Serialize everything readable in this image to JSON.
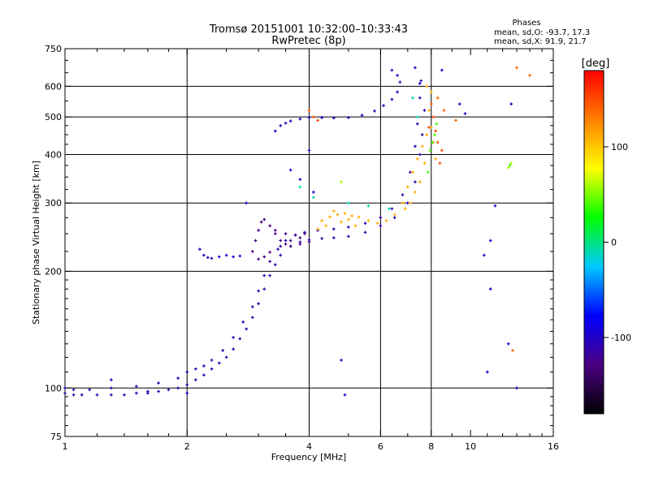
{
  "chart_data": {
    "type": "scatter",
    "title": "Tromsø 20151001 10:32:00–10:33:43",
    "subtitle": "RwPretec (8p)",
    "stats": {
      "heading": "Phases",
      "line_o": "mean, sd,O: -93.7, 17.3",
      "line_x": "mean, sd,X:  91.9, 21.7"
    },
    "xlabel": "Frequency [MHz]",
    "ylabel": "Stationary phase Virtual Height [km]",
    "x_scale": "log",
    "y_scale": "log",
    "xlim": [
      1,
      16
    ],
    "ylim": [
      75,
      750
    ],
    "x_ticks": [
      1,
      2,
      4,
      6,
      8,
      10,
      16
    ],
    "x_tick_labels": [
      "1",
      "2",
      "4",
      "6",
      "8",
      "10",
      "16"
    ],
    "y_ticks": [
      75,
      100,
      200,
      300,
      400,
      500,
      600,
      750
    ],
    "y_tick_labels": [
      "75",
      "100",
      "200",
      "300",
      "400",
      "500",
      "600",
      "750"
    ],
    "grid_x": [
      2,
      4,
      6,
      8
    ],
    "grid_y": [
      100,
      200,
      300,
      400,
      500,
      600
    ],
    "colorbar": {
      "label": "[deg]",
      "range": [
        -180,
        180
      ],
      "tick_values": [
        100,
        0,
        -100
      ],
      "tick_labels": [
        "100",
        "0",
        "-100"
      ],
      "colors": [
        "#000000",
        "#4b0082",
        "#0000ff",
        "#00c8ff",
        "#00ff00",
        "#ffff00",
        "#ff8000",
        "#ff0000"
      ]
    },
    "series": [
      {
        "phase": -110,
        "points": [
          [
            1.0,
            97
          ],
          [
            1.05,
            96
          ],
          [
            1.1,
            96
          ],
          [
            1.2,
            96
          ],
          [
            1.3,
            96
          ],
          [
            1.4,
            96
          ],
          [
            1.5,
            97
          ],
          [
            1.6,
            98
          ],
          [
            1.7,
            98
          ],
          [
            1.8,
            99
          ],
          [
            1.9,
            100
          ],
          [
            2.0,
            102
          ],
          [
            2.1,
            105
          ],
          [
            2.2,
            108
          ],
          [
            2.3,
            112
          ],
          [
            2.4,
            116
          ],
          [
            2.5,
            120
          ],
          [
            2.6,
            126
          ],
          [
            2.7,
            134
          ],
          [
            2.8,
            142
          ],
          [
            2.9,
            152
          ],
          [
            3.0,
            165
          ],
          [
            3.1,
            180
          ],
          [
            3.2,
            195
          ],
          [
            3.3,
            208
          ],
          [
            3.4,
            220
          ],
          [
            3.6,
            232
          ],
          [
            3.8,
            238
          ],
          [
            4.0,
            241
          ],
          [
            4.3,
            243
          ],
          [
            4.6,
            244
          ],
          [
            5.0,
            246
          ],
          [
            5.5,
            252
          ],
          [
            6.0,
            262
          ],
          [
            6.5,
            275
          ],
          [
            7.0,
            300
          ],
          [
            7.3,
            340
          ],
          [
            7.5,
            400
          ],
          [
            7.6,
            450
          ],
          [
            7.7,
            520
          ]
        ]
      },
      {
        "phase": -110,
        "points": [
          [
            1.0,
            100
          ],
          [
            1.05,
            99
          ],
          [
            1.15,
            99
          ],
          [
            1.3,
            100
          ],
          [
            1.5,
            101
          ],
          [
            1.7,
            103
          ],
          [
            1.9,
            106
          ],
          [
            2.0,
            110
          ],
          [
            2.1,
            112
          ],
          [
            2.2,
            114
          ],
          [
            2.3,
            118
          ],
          [
            2.45,
            125
          ],
          [
            2.6,
            135
          ],
          [
            2.75,
            148
          ],
          [
            2.9,
            162
          ],
          [
            3.0,
            178
          ],
          [
            3.1,
            195
          ],
          [
            3.2,
            212
          ],
          [
            3.35,
            228
          ],
          [
            3.5,
            240
          ],
          [
            3.7,
            248
          ],
          [
            3.9,
            252
          ],
          [
            4.2,
            255
          ],
          [
            4.6,
            257
          ],
          [
            5.0,
            260
          ],
          [
            5.5,
            266
          ],
          [
            6.0,
            275
          ],
          [
            6.4,
            290
          ],
          [
            6.8,
            315
          ],
          [
            7.1,
            360
          ],
          [
            7.3,
            420
          ],
          [
            7.4,
            480
          ],
          [
            7.5,
            560
          ],
          [
            7.55,
            620
          ]
        ]
      },
      {
        "phase": -125,
        "points": [
          [
            2.9,
            225
          ],
          [
            2.95,
            240
          ],
          [
            3.0,
            255
          ],
          [
            3.05,
            268
          ],
          [
            3.1,
            272
          ],
          [
            3.2,
            262
          ],
          [
            3.3,
            250
          ],
          [
            3.4,
            240
          ],
          [
            3.5,
            235
          ],
          [
            3.6,
            232
          ],
          [
            3.8,
            235
          ],
          [
            4.0,
            238
          ],
          [
            3.0,
            215
          ],
          [
            3.1,
            218
          ],
          [
            3.2,
            224
          ],
          [
            3.4,
            232
          ],
          [
            3.6,
            240
          ],
          [
            3.8,
            244
          ],
          [
            3.3,
            255
          ],
          [
            3.5,
            250
          ],
          [
            3.7,
            248
          ],
          [
            3.9,
            250
          ]
        ]
      },
      {
        "phase": -105,
        "points": [
          [
            3.3,
            460
          ],
          [
            3.4,
            475
          ],
          [
            3.5,
            482
          ],
          [
            3.6,
            488
          ],
          [
            3.8,
            494
          ],
          [
            4.0,
            498
          ],
          [
            4.3,
            498
          ],
          [
            4.6,
            497
          ],
          [
            5.0,
            498
          ],
          [
            5.4,
            505
          ],
          [
            5.8,
            518
          ],
          [
            6.1,
            535
          ],
          [
            6.4,
            555
          ],
          [
            6.6,
            580
          ],
          [
            6.7,
            615
          ]
        ]
      },
      {
        "phase": -100,
        "points": [
          [
            2.2,
            220
          ],
          [
            2.25,
            217
          ],
          [
            2.3,
            216
          ],
          [
            2.4,
            218
          ],
          [
            2.5,
            220
          ],
          [
            2.6,
            218
          ],
          [
            2.7,
            219
          ],
          [
            2.15,
            228
          ]
        ]
      },
      {
        "phase": 110,
        "points": [
          [
            4.3,
            270
          ],
          [
            4.5,
            276
          ],
          [
            4.7,
            280
          ],
          [
            4.9,
            282
          ],
          [
            5.1,
            278
          ],
          [
            5.3,
            276
          ],
          [
            5.6,
            270
          ],
          [
            5.9,
            266
          ],
          [
            6.2,
            270
          ],
          [
            6.5,
            280
          ],
          [
            6.8,
            300
          ],
          [
            7.0,
            330
          ],
          [
            7.2,
            360
          ],
          [
            7.4,
            390
          ],
          [
            7.6,
            420
          ],
          [
            7.8,
            450
          ],
          [
            8.0,
            470
          ],
          [
            8.1,
            430
          ],
          [
            8.2,
            390
          ],
          [
            7.9,
            520
          ],
          [
            8.0,
            580
          ],
          [
            7.8,
            600
          ],
          [
            7.7,
            380
          ],
          [
            7.5,
            340
          ],
          [
            7.3,
            320
          ],
          [
            7.1,
            300
          ],
          [
            6.9,
            290
          ],
          [
            4.4,
            262
          ],
          [
            4.6,
            286
          ],
          [
            4.8,
            268
          ],
          [
            5.0,
            272
          ],
          [
            5.2,
            262
          ],
          [
            4.2,
            257
          ]
        ]
      },
      {
        "phase": 150,
        "points": [
          [
            8.0,
            540
          ],
          [
            8.1,
            500
          ],
          [
            8.2,
            460
          ],
          [
            8.3,
            430
          ],
          [
            7.9,
            470
          ],
          [
            8.5,
            410
          ],
          [
            8.4,
            380
          ],
          [
            4.2,
            490
          ],
          [
            4.1,
            500
          ],
          [
            4.0,
            520
          ]
        ]
      },
      {
        "phase": 40,
        "points": [
          [
            7.95,
            410
          ],
          [
            8.05,
            430
          ],
          [
            8.15,
            450
          ],
          [
            7.85,
            360
          ],
          [
            8.25,
            480
          ],
          [
            12.5,
            375
          ]
        ]
      },
      {
        "phase": -10,
        "points": [
          [
            5.0,
            300
          ],
          [
            5.6,
            295
          ],
          [
            6.3,
            290
          ],
          [
            3.8,
            330
          ],
          [
            4.1,
            310
          ],
          [
            7.2,
            560
          ],
          [
            7.4,
            500
          ]
        ]
      },
      {
        "phase": -100,
        "points": [
          [
            1.3,
            105
          ],
          [
            1.6,
            97
          ],
          [
            2.0,
            97
          ],
          [
            2.8,
            300
          ],
          [
            3.6,
            365
          ],
          [
            3.8,
            345
          ],
          [
            4.0,
            410
          ],
          [
            4.1,
            320
          ],
          [
            6.4,
            660
          ],
          [
            6.6,
            640
          ],
          [
            7.3,
            670
          ],
          [
            7.5,
            610
          ],
          [
            9.4,
            540
          ],
          [
            9.7,
            510
          ],
          [
            8.5,
            660
          ],
          [
            11.0,
            110
          ],
          [
            11.2,
            180
          ],
          [
            11.5,
            295
          ],
          [
            11.2,
            240
          ],
          [
            12.4,
            130
          ],
          [
            12.6,
            540
          ],
          [
            13.0,
            100
          ],
          [
            4.9,
            96
          ],
          [
            4.8,
            118
          ],
          [
            10.8,
            220
          ]
        ]
      },
      {
        "phase": 140,
        "points": [
          [
            13.0,
            670
          ],
          [
            14.0,
            640
          ],
          [
            12.7,
            125
          ],
          [
            8.3,
            560
          ],
          [
            8.6,
            520
          ],
          [
            9.2,
            490
          ]
        ]
      },
      {
        "phase": 60,
        "points": [
          [
            12.4,
            370
          ],
          [
            12.6,
            380
          ],
          [
            4.8,
            340
          ]
        ]
      }
    ]
  }
}
